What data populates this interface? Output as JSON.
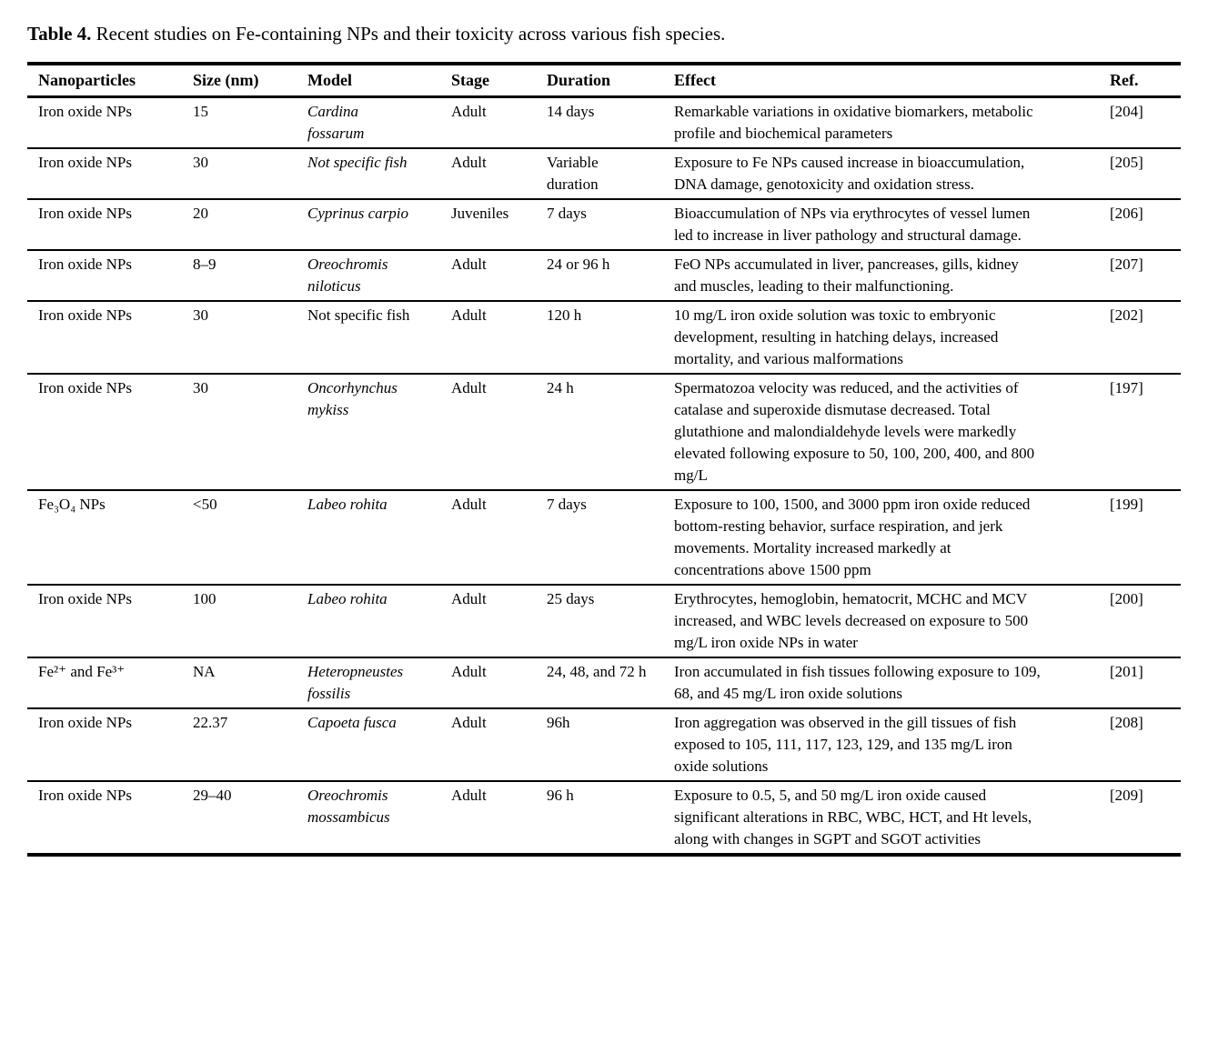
{
  "caption": {
    "label": "Table 4.",
    "text": "Recent studies on Fe-containing NPs and their toxicity across various fish species."
  },
  "table": {
    "headers": [
      "Nanoparticles",
      "Size (nm)",
      "Model",
      "Stage",
      "Duration",
      "Effect",
      "Ref."
    ],
    "rows": [
      {
        "nanoparticles": "Iron oxide NPs",
        "size": "15",
        "model": "Cardina fossarum",
        "model_italic": true,
        "stage": "Adult",
        "duration": "14 days",
        "effect": "Remarkable variations in oxidative biomarkers, metabolic profile and biochemical parameters",
        "ref": "[204]"
      },
      {
        "nanoparticles": "Iron oxide NPs",
        "size": "30",
        "model": "Not specific fish",
        "model_italic": true,
        "stage": "Adult",
        "duration": "Variable duration",
        "effect": "Exposure to Fe NPs caused increase in bioaccumulation, DNA damage, genotoxicity and oxidation stress.",
        "ref": "[205]"
      },
      {
        "nanoparticles": "Iron oxide NPs",
        "size": "20",
        "model": "Cyprinus carpio",
        "model_italic": true,
        "stage": "Juveniles",
        "duration": "7 days",
        "effect": "Bioaccumulation of NPs via erythrocytes of vessel lumen led to increase in liver pathology and structural damage.",
        "ref": "[206]"
      },
      {
        "nanoparticles": "Iron oxide NPs",
        "size": "8–9",
        "model": "Oreochromis niloticus",
        "model_italic": true,
        "stage": "Adult",
        "duration": "24 or 96 h",
        "effect": "FeO NPs accumulated in liver, pancreases, gills, kidney and muscles, leading to their malfunctioning.",
        "ref": "[207]"
      },
      {
        "nanoparticles": "Iron oxide NPs",
        "size": "30",
        "model": "Not specific fish",
        "model_italic": false,
        "stage": "Adult",
        "duration": "120 h",
        "effect": "10 mg/L iron oxide solution was toxic to embryonic development, resulting in hatching delays, increased mortality, and various malformations",
        "ref": "[202]"
      },
      {
        "nanoparticles": "Iron oxide NPs",
        "size": "30",
        "model": "Oncorhynchus mykiss",
        "model_italic": true,
        "stage": "Adult",
        "duration": "24 h",
        "effect": "Spermatozoa velocity was reduced, and the activities of catalase and superoxide dismutase decreased. Total glutathione and malondialdehyde levels were markedly elevated following exposure to 50, 100, 200, 400, and 800 mg/L",
        "ref": "[197]"
      },
      {
        "nanoparticles": "Fe₃O₄ NPs",
        "size": "<50",
        "model": "Labeo rohita",
        "model_italic": true,
        "stage": "Adult",
        "duration": "7 days",
        "effect": "Exposure to 100, 1500, and 3000 ppm iron oxide reduced bottom-resting behavior, surface respiration, and jerk movements. Mortality increased markedly at concentrations above 1500 ppm",
        "ref": "[199]"
      },
      {
        "nanoparticles": "Iron oxide NPs",
        "size": "100",
        "model": "Labeo rohita",
        "model_italic": true,
        "stage": "Adult",
        "duration": "25 days",
        "effect": "Erythrocytes, hemoglobin, hematocrit, MCHC and MCV increased, and WBC levels decreased on exposure to 500 mg/L iron oxide NPs in water",
        "ref": "[200]"
      },
      {
        "nanoparticles": "Fe²⁺ and Fe³⁺",
        "size": "NA",
        "model": "Heteropneustes fossilis",
        "model_italic": true,
        "stage": "Adult",
        "duration": "24, 48, and 72 h",
        "effect": "Iron accumulated in fish tissues following exposure to 109, 68, and 45 mg/L iron oxide solutions",
        "ref": "[201]"
      },
      {
        "nanoparticles": "Iron oxide NPs",
        "size": "22.37",
        "model": "Capoeta fusca",
        "model_italic": true,
        "stage": "Adult",
        "duration": "96h",
        "effect": "Iron aggregation was observed in the gill tissues of fish exposed to 105, 111, 117, 123, 129, and 135 mg/L iron oxide solutions",
        "ref": "[208]"
      },
      {
        "nanoparticles": "Iron oxide NPs",
        "size": "29–40",
        "model": "Oreochromis mossambicus",
        "model_italic": true,
        "stage": "Adult",
        "duration": "96 h",
        "effect": "Exposure to 0.5, 5, and 50 mg/L iron oxide caused significant alterations in RBC, WBC, HCT, and Ht levels, along with changes in SGPT and SGOT activities",
        "ref": "[209]"
      }
    ]
  }
}
